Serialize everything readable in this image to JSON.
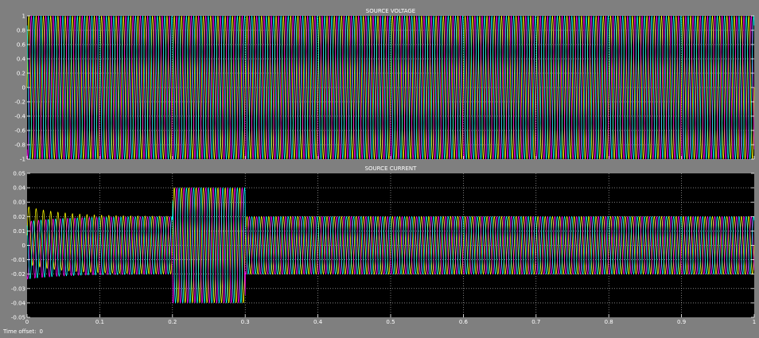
{
  "footer": {
    "time_offset_label": "Time offset:",
    "time_offset_value": "0"
  },
  "colors": {
    "background": "#7f7f7f",
    "axes": "#000000",
    "grid": "#ffffff",
    "text": "#ffffff"
  },
  "chart_data": [
    {
      "type": "line",
      "title": "SOURCE VOLTAGE",
      "xlim": [
        0,
        1
      ],
      "ylim": [
        -1,
        1
      ],
      "grid": true,
      "y_ticks": [
        -1,
        -0.8,
        -0.6,
        -0.4,
        -0.2,
        0,
        0.2,
        0.4,
        0.6,
        0.8,
        1
      ],
      "y_tick_labels": [
        "-1",
        "-0.8",
        "-0.6",
        "-0.4",
        "-0.2",
        "0",
        "0.2",
        "0.4",
        "0.6",
        "0.8",
        "1"
      ],
      "frequency_hz": 100,
      "series": [
        {
          "color": "#ffff00",
          "amplitude": 1,
          "phase_deg": 0
        },
        {
          "color": "#ff00ff",
          "amplitude": 1,
          "phase_deg": -120
        },
        {
          "color": "#00ffff",
          "amplitude": 1,
          "phase_deg": 120
        }
      ]
    },
    {
      "type": "line",
      "title": "SOURCE CURRENT",
      "xlim": [
        0,
        1
      ],
      "ylim": [
        -0.05,
        0.05
      ],
      "grid": true,
      "x_ticks": [
        0,
        0.1,
        0.2,
        0.3,
        0.4,
        0.5,
        0.6,
        0.7,
        0.8,
        0.9,
        1
      ],
      "x_tick_labels": [
        "0",
        "0.1",
        "0.2",
        "0.3",
        "0.4",
        "0.5",
        "0.6",
        "0.7",
        "0.8",
        "0.9",
        "1"
      ],
      "y_ticks": [
        -0.05,
        -0.04,
        -0.03,
        -0.02,
        -0.01,
        0,
        0.01,
        0.02,
        0.03,
        0.04,
        0.05
      ],
      "y_tick_labels": [
        "-0.05",
        "-0.04",
        "-0.03",
        "-0.02",
        "-0.01",
        "0",
        "0.01",
        "0.02",
        "0.03",
        "0.04",
        "0.05"
      ],
      "frequency_hz": 100,
      "amplitude_segments": [
        {
          "t_start": 0,
          "t_end": 0.2,
          "amplitude": 0.02
        },
        {
          "t_start": 0.2,
          "t_end": 0.3,
          "amplitude": 0.04
        },
        {
          "t_start": 0.3,
          "t_end": 1,
          "amplitude": 0.02
        }
      ],
      "initial_dc_offset": 0.007,
      "dc_decay_time_s": 0.05,
      "series": [
        {
          "color": "#ffff00",
          "phase_deg": 0
        },
        {
          "color": "#ff00ff",
          "phase_deg": -120
        },
        {
          "color": "#00ffff",
          "phase_deg": 120
        }
      ]
    }
  ]
}
